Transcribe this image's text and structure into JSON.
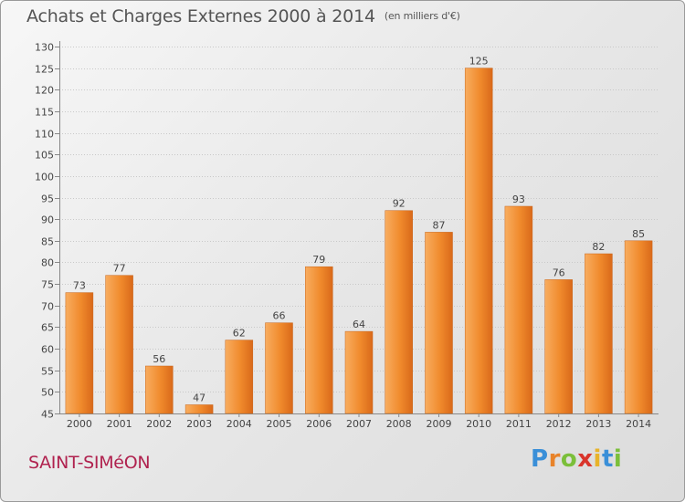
{
  "title": "Achats et Charges Externes 2000 à 2014",
  "unit": "(en milliers d'€)",
  "commune": "SAINT-SIMéON",
  "logo": {
    "letters": [
      "P",
      "r",
      "o",
      "x",
      "i",
      "t",
      "i"
    ],
    "colors": [
      "#3a8fd8",
      "#e8832a",
      "#7bbf3a",
      "#d9342b",
      "#e8b32a",
      "#3a8fd8",
      "#7bbf3a"
    ]
  },
  "colors": {
    "bar": "#f08a2c",
    "bar_light": "#f8ad60",
    "bar_dark": "#d9691a",
    "grid": "#c8c8c8",
    "text": "#444444"
  },
  "chart_data": {
    "type": "bar",
    "categories": [
      "2000",
      "2001",
      "2002",
      "2003",
      "2004",
      "2005",
      "2006",
      "2007",
      "2008",
      "2009",
      "2010",
      "2011",
      "2012",
      "2013",
      "2014"
    ],
    "values": [
      73,
      77,
      56,
      47,
      62,
      66,
      79,
      64,
      92,
      87,
      125,
      93,
      76,
      82,
      85
    ],
    "ylim": [
      45,
      130
    ],
    "yticks": [
      45,
      50,
      55,
      60,
      65,
      70,
      75,
      80,
      85,
      90,
      95,
      100,
      105,
      110,
      115,
      120,
      125,
      130
    ],
    "grid": true,
    "xlabel": "",
    "ylabel": ""
  }
}
